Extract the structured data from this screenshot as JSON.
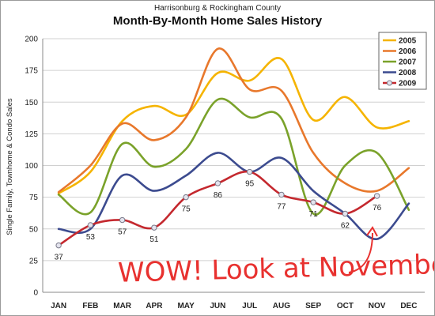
{
  "header": {
    "subtitle": "Harrisonburg & Rockingham County",
    "title": "Month-By-Month Home Sales History"
  },
  "chart_data": {
    "type": "line",
    "title": "Month-By-Month Home Sales History",
    "subtitle": "Harrisonburg & Rockingham County",
    "xlabel": "",
    "ylabel": "Single Family, Townhome & Condo Sales",
    "categories": [
      "JAN",
      "FEB",
      "MAR",
      "APR",
      "MAY",
      "JUN",
      "JUL",
      "AUG",
      "SEP",
      "OCT",
      "NOV",
      "DEC"
    ],
    "ylim": [
      0,
      200
    ],
    "yticks": [
      0,
      25,
      50,
      75,
      100,
      125,
      150,
      175,
      200
    ],
    "grid": "horizontal",
    "legend_position": "top-right",
    "series": [
      {
        "name": "2005",
        "color": "#f5b400",
        "values": [
          78,
          95,
          135,
          147,
          140,
          173,
          167,
          184,
          136,
          154,
          130,
          135
        ]
      },
      {
        "name": "2006",
        "color": "#e8782c",
        "values": [
          79,
          100,
          133,
          120,
          138,
          192,
          160,
          159,
          110,
          86,
          80,
          98
        ]
      },
      {
        "name": "2007",
        "color": "#7aa22a",
        "values": [
          77,
          63,
          117,
          99,
          113,
          152,
          138,
          137,
          62,
          100,
          110,
          65
        ]
      },
      {
        "name": "2008",
        "color": "#3c4b8f",
        "values": [
          50,
          50,
          92,
          80,
          92,
          110,
          95,
          106,
          80,
          62,
          42,
          70
        ]
      },
      {
        "name": "2009",
        "color": "#c4282e",
        "markers": true,
        "values": [
          37,
          53,
          57,
          51,
          75,
          86,
          95,
          77,
          71,
          62,
          76,
          null
        ],
        "labels": [
          "37",
          "53",
          "57",
          "51",
          "75",
          "86",
          "95",
          "77",
          "71",
          "62",
          "76",
          ""
        ]
      }
    ],
    "annotation": {
      "text": "WOW! Look at November",
      "color": "#e8312f"
    }
  }
}
